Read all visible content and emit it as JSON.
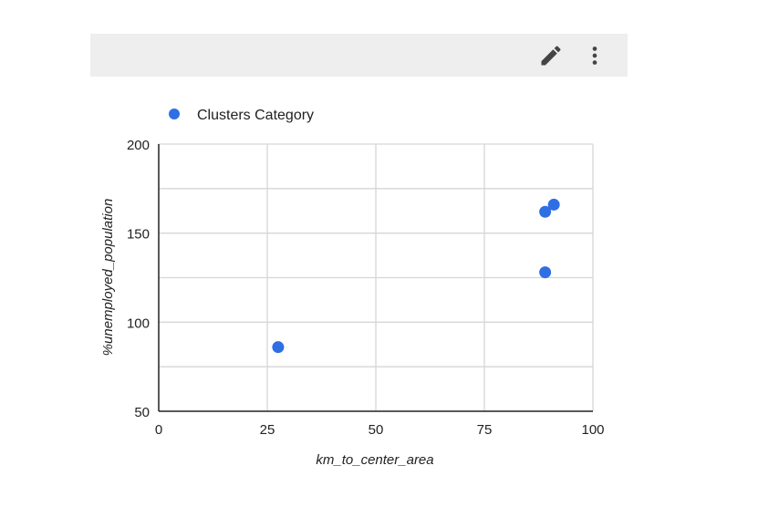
{
  "toolbar": {
    "edit_icon": "pencil-icon",
    "more_icon": "more-vert-icon",
    "icon_color": "#444444",
    "background": "#eeeeee"
  },
  "chart_data": {
    "type": "scatter",
    "title": "",
    "xlabel": "km_to_center_area",
    "ylabel": "%unemployed_population",
    "xlim": [
      0,
      100
    ],
    "ylim": [
      50,
      200
    ],
    "x_ticks": [
      0,
      25,
      50,
      75,
      100
    ],
    "y_ticks": [
      50,
      100,
      150,
      200
    ],
    "x_tick_labels": [
      "0",
      "25",
      "50",
      "75",
      "100"
    ],
    "y_tick_labels": [
      "50",
      "100",
      "150",
      "200"
    ],
    "x_grid_values": [
      25,
      50,
      75,
      100
    ],
    "y_grid_values": [
      75,
      100,
      125,
      150,
      175,
      200
    ],
    "grid": true,
    "legend_position": "top-left",
    "series": [
      {
        "name": "Clusters Category",
        "color": "#2f6fe4",
        "points": [
          {
            "x": 27.5,
            "y": 86
          },
          {
            "x": 89,
            "y": 128
          },
          {
            "x": 89,
            "y": 162
          },
          {
            "x": 91,
            "y": 166
          }
        ]
      }
    ]
  }
}
